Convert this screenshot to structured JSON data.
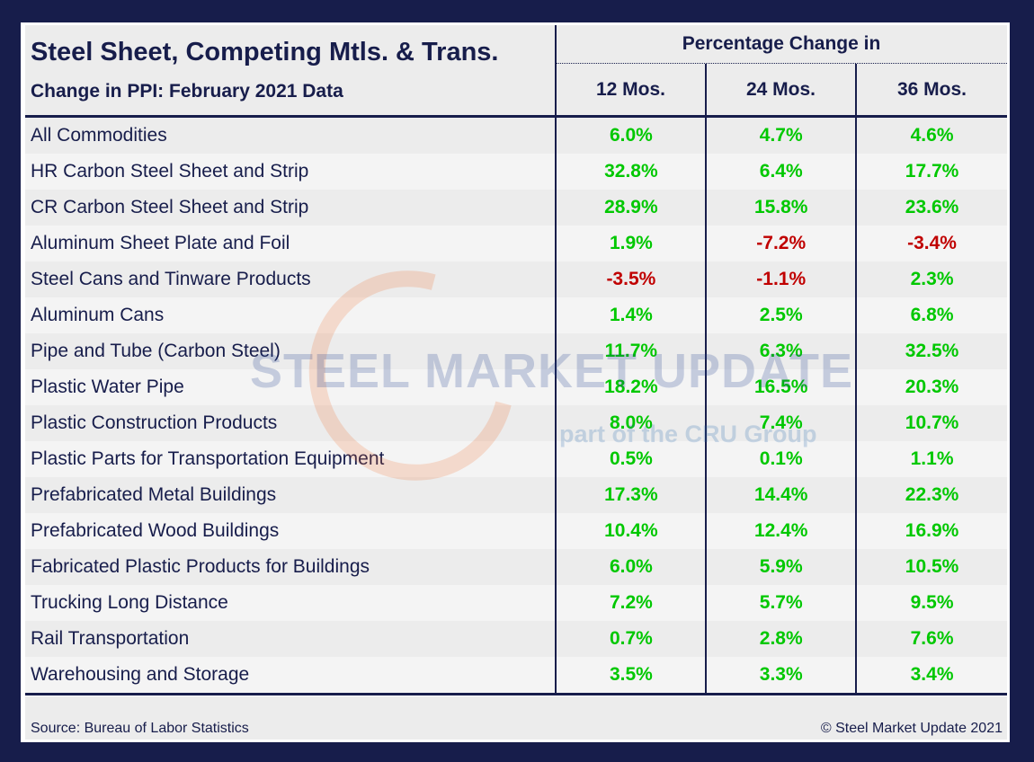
{
  "header": {
    "title": "Steel Sheet, Competing Mtls. & Trans.",
    "subtitle": "Change in PPI: February 2021 Data",
    "group_header": "Percentage Change in",
    "columns": [
      "12 Mos.",
      "24 Mos.",
      "36 Mos."
    ]
  },
  "colors": {
    "positive": "#00c800",
    "negative": "#c00000",
    "navy": "#171d4b"
  },
  "rows": [
    {
      "label": "All Commodities",
      "values": [
        "6.0%",
        "4.7%",
        "4.6%"
      ]
    },
    {
      "label": "HR Carbon Steel Sheet and Strip",
      "values": [
        "32.8%",
        "6.4%",
        "17.7%"
      ]
    },
    {
      "label": "CR Carbon Steel Sheet and Strip",
      "values": [
        "28.9%",
        "15.8%",
        "23.6%"
      ]
    },
    {
      "label": "Aluminum Sheet Plate and Foil",
      "values": [
        "1.9%",
        "-7.2%",
        "-3.4%"
      ]
    },
    {
      "label": "Steel Cans and Tinware Products",
      "values": [
        "-3.5%",
        "-1.1%",
        "2.3%"
      ]
    },
    {
      "label": "Aluminum Cans",
      "values": [
        "1.4%",
        "2.5%",
        "6.8%"
      ]
    },
    {
      "label": "Pipe and Tube (Carbon Steel)",
      "values": [
        "11.7%",
        "6.3%",
        "32.5%"
      ]
    },
    {
      "label": "Plastic Water Pipe",
      "values": [
        "18.2%",
        "16.5%",
        "20.3%"
      ]
    },
    {
      "label": "Plastic Construction Products",
      "values": [
        "8.0%",
        "7.4%",
        "10.7%"
      ]
    },
    {
      "label": "Plastic Parts for Transportation Equipment",
      "values": [
        "0.5%",
        "0.1%",
        "1.1%"
      ]
    },
    {
      "label": "Prefabricated Metal Buildings",
      "values": [
        "17.3%",
        "14.4%",
        "22.3%"
      ]
    },
    {
      "label": "Prefabricated Wood Buildings",
      "values": [
        "10.4%",
        "12.4%",
        "16.9%"
      ]
    },
    {
      "label": "Fabricated Plastic Products for Buildings",
      "values": [
        "6.0%",
        "5.9%",
        "10.5%"
      ]
    },
    {
      "label": "Trucking Long Distance",
      "values": [
        "7.2%",
        "5.7%",
        "9.5%"
      ]
    },
    {
      "label": "Rail Transportation",
      "values": [
        "0.7%",
        "2.8%",
        "7.6%"
      ]
    },
    {
      "label": "Warehousing and Storage",
      "values": [
        "3.5%",
        "3.3%",
        "3.4%"
      ]
    }
  ],
  "footer": {
    "source": "Source: Bureau of Labor Statistics",
    "copyright": "© Steel Market Update 2021"
  },
  "watermark": {
    "line1": "STEEL MARKET UPDATE",
    "line2": "part of the CRU Group"
  },
  "chart_data": {
    "type": "table",
    "title": "Steel Sheet, Competing Mtls. & Trans.",
    "subtitle": "Change in PPI: February 2021 Data",
    "columns": [
      "12 Mos.",
      "24 Mos.",
      "36 Mos."
    ],
    "unit": "percent",
    "categories": [
      "All Commodities",
      "HR Carbon Steel Sheet and Strip",
      "CR Carbon Steel Sheet and Strip",
      "Aluminum Sheet Plate and Foil",
      "Steel Cans and Tinware Products",
      "Aluminum Cans",
      "Pipe and Tube (Carbon Steel)",
      "Plastic Water Pipe",
      "Plastic Construction Products",
      "Plastic Parts for Transportation Equipment",
      "Prefabricated Metal Buildings",
      "Prefabricated Wood Buildings",
      "Fabricated Plastic Products for Buildings",
      "Trucking Long Distance",
      "Rail Transportation",
      "Warehousing and Storage"
    ],
    "series": [
      {
        "name": "12 Mos.",
        "values": [
          6.0,
          32.8,
          28.9,
          1.9,
          -3.5,
          1.4,
          11.7,
          18.2,
          8.0,
          0.5,
          17.3,
          10.4,
          6.0,
          7.2,
          0.7,
          3.5
        ]
      },
      {
        "name": "24 Mos.",
        "values": [
          4.7,
          6.4,
          15.8,
          -7.2,
          -1.1,
          2.5,
          6.3,
          16.5,
          7.4,
          0.1,
          14.4,
          12.4,
          5.9,
          5.7,
          2.8,
          3.3
        ]
      },
      {
        "name": "36 Mos.",
        "values": [
          4.6,
          17.7,
          23.6,
          -3.4,
          2.3,
          6.8,
          32.5,
          20.3,
          10.7,
          1.1,
          22.3,
          16.9,
          10.5,
          9.5,
          7.6,
          3.4
        ]
      }
    ]
  }
}
